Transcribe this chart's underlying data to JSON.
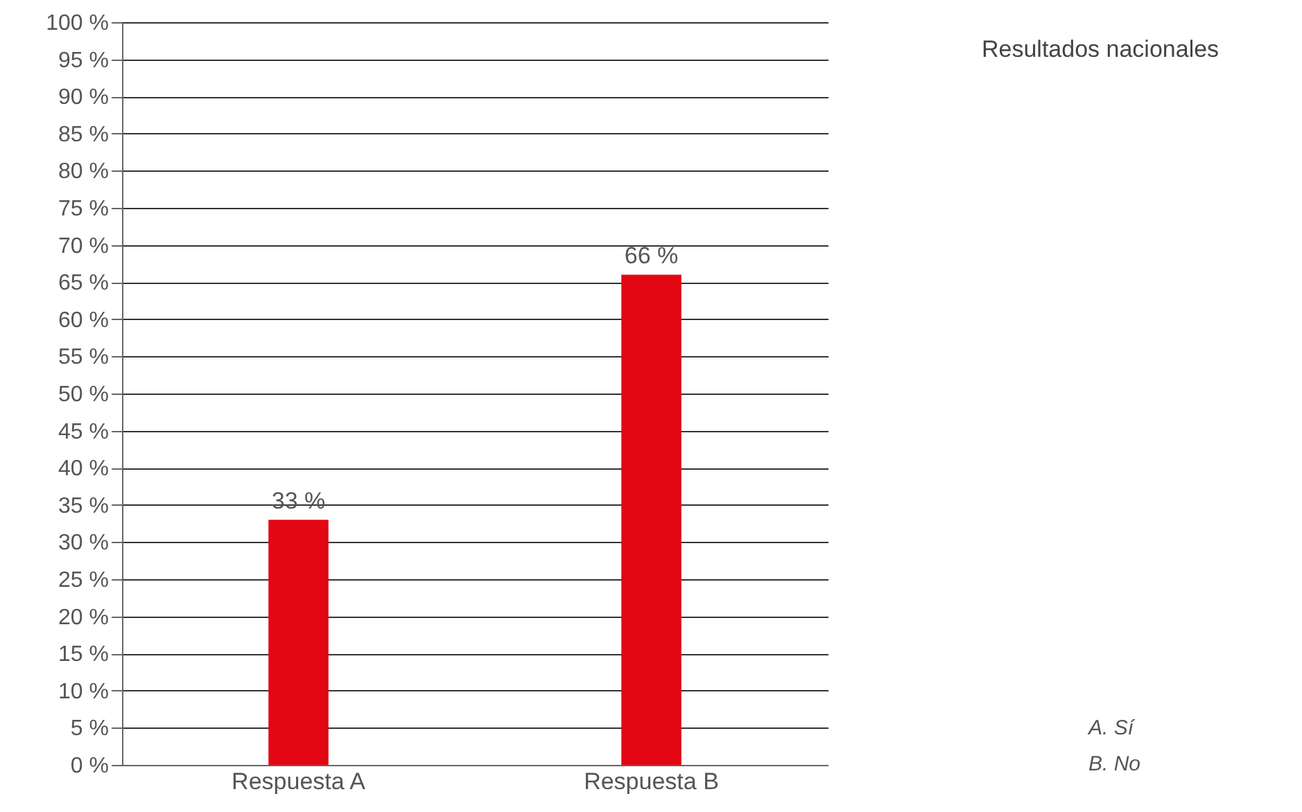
{
  "chart_data": {
    "type": "bar",
    "title": "Resultados nacionales",
    "categories": [
      "Respuesta A",
      "Respuesta B"
    ],
    "values": [
      33,
      66
    ],
    "color": "#e30613",
    "value_labels": [
      "33 %",
      "66 %"
    ],
    "ylim": [
      0,
      100
    ],
    "yticks": [
      {
        "value": 0,
        "label": "0 %"
      },
      {
        "value": 5,
        "label": "5 %"
      },
      {
        "value": 10,
        "label": "10 %"
      },
      {
        "value": 15,
        "label": "15 %"
      },
      {
        "value": 20,
        "label": "20 %"
      },
      {
        "value": 25,
        "label": "25 %"
      },
      {
        "value": 30,
        "label": "30 %"
      },
      {
        "value": 35,
        "label": "35 %"
      },
      {
        "value": 40,
        "label": "40 %"
      },
      {
        "value": 45,
        "label": "45 %"
      },
      {
        "value": 50,
        "label": "50 %"
      },
      {
        "value": 55,
        "label": "55 %"
      },
      {
        "value": 60,
        "label": "60 %"
      },
      {
        "value": 65,
        "label": "65 %"
      },
      {
        "value": 70,
        "label": "70 %"
      },
      {
        "value": 75,
        "label": "75 %"
      },
      {
        "value": 80,
        "label": "80 %"
      },
      {
        "value": 85,
        "label": "85 %"
      },
      {
        "value": 90,
        "label": "90 %"
      },
      {
        "value": 95,
        "label": "95 %"
      },
      {
        "value": 100,
        "label": "100 %"
      }
    ],
    "grid": "y",
    "annotations": [
      "A. Sí",
      "B. No"
    ]
  }
}
